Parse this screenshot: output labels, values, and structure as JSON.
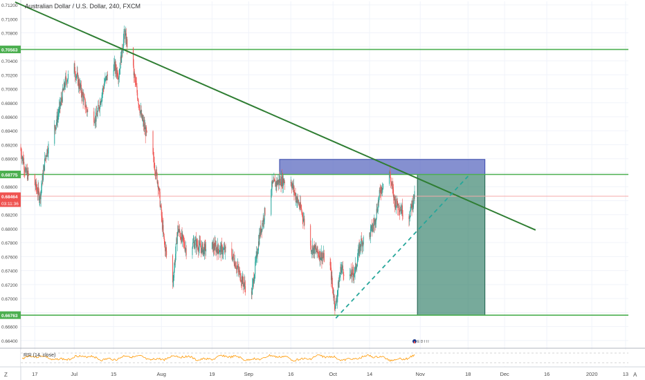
{
  "chart_title": "Australian Dollar / U.S. Dollar, 240, FXCM",
  "chart_data": {
    "type": "candlestick",
    "symbol": "Australian Dollar / U.S. Dollar, 240, FXCM",
    "y_range": [
      0.663,
      0.7125
    ],
    "y_ticks": [
      "0.71200",
      "0.71000",
      "0.70800",
      "0.70600",
      "0.70400",
      "0.70200",
      "0.70000",
      "0.69800",
      "0.69600",
      "0.69400",
      "0.69200",
      "0.69000",
      "0.68800",
      "0.68600",
      "0.68400",
      "0.68200",
      "0.68000",
      "0.67800",
      "0.67600",
      "0.67400",
      "0.67200",
      "0.67000",
      "0.66800",
      "0.66600",
      "0.66400"
    ],
    "x_range": [
      "2019-06-12",
      "2020-01-14"
    ],
    "x_ticks": [
      {
        "date": "2019-06-17",
        "label": "17"
      },
      {
        "date": "2019-07-01",
        "label": "Jul"
      },
      {
        "date": "2019-07-15",
        "label": "15"
      },
      {
        "date": "2019-08-01",
        "label": "Aug"
      },
      {
        "date": "2019-08-19",
        "label": "19"
      },
      {
        "date": "2019-09-01",
        "label": "Sep"
      },
      {
        "date": "2019-09-16",
        "label": "16"
      },
      {
        "date": "2019-10-01",
        "label": "Oct"
      },
      {
        "date": "2019-10-14",
        "label": "14"
      },
      {
        "date": "2019-11-01",
        "label": "Nov"
      },
      {
        "date": "2019-11-18",
        "label": "18"
      },
      {
        "date": "2019-12-01",
        "label": "Dec"
      },
      {
        "date": "2019-12-16",
        "label": "16"
      },
      {
        "date": "2020-01-01",
        "label": "2020"
      },
      {
        "date": "2020-01-13",
        "label": "13"
      }
    ],
    "price_path": [
      [
        "2019-06-12",
        0.6915
      ],
      [
        "2019-06-14",
        0.688
      ],
      [
        "2019-06-17",
        0.6865
      ],
      [
        "2019-06-19",
        0.6845
      ],
      [
        "2019-06-21",
        0.6905
      ],
      [
        "2019-06-25",
        0.6955
      ],
      [
        "2019-06-28",
        0.701
      ],
      [
        "2019-07-01",
        0.7032
      ],
      [
        "2019-07-03",
        0.7005
      ],
      [
        "2019-07-06",
        0.6965
      ],
      [
        "2019-07-09",
        0.6958
      ],
      [
        "2019-07-12",
        0.701
      ],
      [
        "2019-07-15",
        0.7035
      ],
      [
        "2019-07-17",
        0.702
      ],
      [
        "2019-07-19",
        0.708
      ],
      [
        "2019-07-22",
        0.703
      ],
      [
        "2019-07-25",
        0.696
      ],
      [
        "2019-07-29",
        0.6905
      ],
      [
        "2019-07-31",
        0.6865
      ],
      [
        "2019-08-02",
        0.6785
      ],
      [
        "2019-08-05",
        0.6715
      ],
      [
        "2019-08-07",
        0.68
      ],
      [
        "2019-08-10",
        0.677
      ],
      [
        "2019-08-13",
        0.678
      ],
      [
        "2019-08-16",
        0.677
      ],
      [
        "2019-08-19",
        0.6775
      ],
      [
        "2019-08-22",
        0.677
      ],
      [
        "2019-08-26",
        0.6765
      ],
      [
        "2019-08-30",
        0.6725
      ],
      [
        "2019-09-02",
        0.67
      ],
      [
        "2019-09-05",
        0.679
      ],
      [
        "2019-09-09",
        0.686
      ],
      [
        "2019-09-12",
        0.6868
      ],
      [
        "2019-09-16",
        0.687
      ],
      [
        "2019-09-18",
        0.6845
      ],
      [
        "2019-09-20",
        0.6825
      ],
      [
        "2019-09-23",
        0.6775
      ],
      [
        "2019-09-26",
        0.6765
      ],
      [
        "2019-09-30",
        0.675
      ],
      [
        "2019-10-01",
        0.6715
      ],
      [
        "2019-10-02",
        0.6688
      ],
      [
        "2019-10-04",
        0.6745
      ],
      [
        "2019-10-07",
        0.673
      ],
      [
        "2019-10-09",
        0.674
      ],
      [
        "2019-10-11",
        0.678
      ],
      [
        "2019-10-14",
        0.679
      ],
      [
        "2019-10-16",
        0.681
      ],
      [
        "2019-10-18",
        0.6855
      ],
      [
        "2019-10-21",
        0.6885
      ],
      [
        "2019-10-23",
        0.684
      ],
      [
        "2019-10-26",
        0.6825
      ],
      [
        "2019-10-28",
        0.6815
      ],
      [
        "2019-10-30",
        0.6846
      ]
    ],
    "horizontal_levels": [
      {
        "price": 0.70563,
        "label": "0.70563",
        "color": "#4caf50"
      },
      {
        "price": 0.68775,
        "label": "0.68775",
        "color": "#4caf50"
      },
      {
        "price": 0.66763,
        "label": "0.66763",
        "color": "#4caf50"
      }
    ],
    "current_price": {
      "price": 0.68464,
      "label": "0.68464",
      "countdown": "03:11:36",
      "color": "#ef5350"
    },
    "trendline_down": {
      "from": [
        "2019-06-10",
        0.7124
      ],
      "to": [
        "2019-12-12",
        0.6798
      ],
      "color": "#2e7d32"
    },
    "trendline_up_dashed": {
      "from": [
        "2019-10-02",
        0.6672
      ],
      "to": [
        "2019-11-18",
        0.6875
      ],
      "color": "#26a69a"
    },
    "resistance_box": {
      "from_date": "2019-09-12",
      "to_date": "2019-11-24",
      "price_low": 0.68775,
      "price_high": 0.6899,
      "color": "#5c6bc0"
    },
    "target_box": {
      "from_date": "2019-10-31",
      "to_date": "2019-11-24",
      "price_low": 0.66763,
      "price_high": 0.68775,
      "color": "#2e7d65"
    },
    "event_icons": "E D I I I",
    "rsi": {
      "label": "RSI (14, close)",
      "color": "#ff9800"
    }
  },
  "bottom_corner_left": "Z",
  "bottom_corner_right": "A",
  "colors": {
    "up": "#26a69a",
    "down": "#ef5350",
    "grid": "#f0f3fa",
    "axis_text": "#4a4a4a"
  }
}
